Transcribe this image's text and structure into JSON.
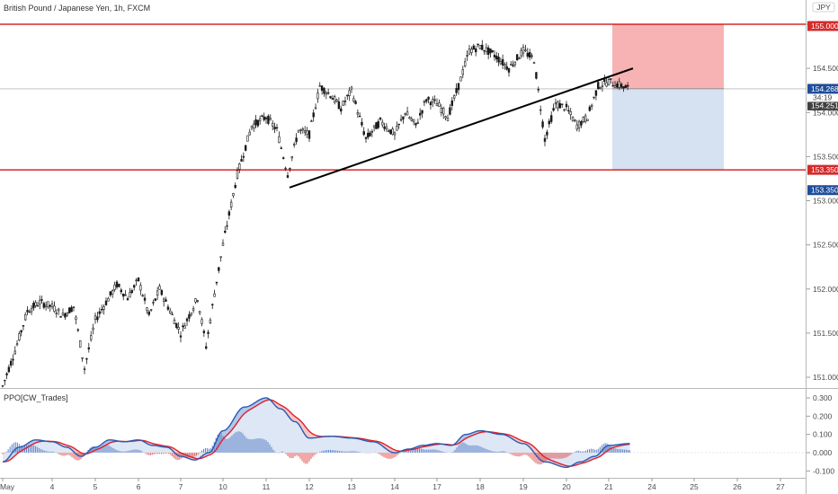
{
  "chart_data": {
    "type": "candlestick",
    "title": "British Pound / Japanese Yen, 1h, FXCM",
    "currency": "JPY",
    "price_axis": {
      "range": [
        150.88,
        155.1
      ],
      "ticks": [
        151.0,
        151.5,
        152.0,
        152.5,
        153.0,
        153.5,
        154.0,
        154.5,
        155.0
      ],
      "tick_labels": [
        "151.000",
        "151.500",
        "152.000",
        "152.500",
        "153.000",
        "153.500",
        "154.000",
        "154.500",
        "155.000"
      ]
    },
    "date_axis": {
      "labels": [
        "May",
        "4",
        "5",
        "6",
        "7",
        "10",
        "11",
        "12",
        "13",
        "14",
        "17",
        "18",
        "19",
        "20",
        "21",
        "24",
        "25",
        "26",
        "27"
      ]
    },
    "price_path": [
      [
        "May",
        150.9
      ],
      [
        "May",
        151.3
      ],
      [
        "May",
        151.75
      ],
      [
        "May",
        151.85
      ],
      [
        "4",
        151.8
      ],
      [
        "4",
        151.7
      ],
      [
        "4",
        151.8
      ],
      [
        "4",
        151.1
      ],
      [
        "5",
        151.65
      ],
      [
        "5",
        151.85
      ],
      [
        "5",
        152.05
      ],
      [
        "5",
        151.9
      ],
      [
        "6",
        152.1
      ],
      [
        "6",
        151.7
      ],
      [
        "6",
        152.0
      ],
      [
        "6",
        151.75
      ],
      [
        "7",
        151.5
      ],
      [
        "7",
        151.7
      ],
      [
        "7",
        151.9
      ],
      [
        "7",
        151.35
      ],
      [
        "7",
        151.95
      ],
      [
        "10",
        152.5
      ],
      [
        "10",
        153.3
      ],
      [
        "10",
        153.85
      ],
      [
        "11",
        153.95
      ],
      [
        "11",
        153.8
      ],
      [
        "11",
        153.3
      ],
      [
        "11",
        153.8
      ],
      [
        "12",
        153.75
      ],
      [
        "12",
        154.3
      ],
      [
        "12",
        154.2
      ],
      [
        "12",
        154.05
      ],
      [
        "13",
        154.25
      ],
      [
        "13",
        153.7
      ],
      [
        "13",
        153.9
      ],
      [
        "14",
        153.75
      ],
      [
        "14",
        154.0
      ],
      [
        "14",
        153.85
      ],
      [
        "14",
        154.15
      ],
      [
        "17",
        154.1
      ],
      [
        "17",
        153.95
      ],
      [
        "17",
        154.3
      ],
      [
        "17",
        154.7
      ],
      [
        "18",
        154.75
      ],
      [
        "18",
        154.65
      ],
      [
        "18",
        154.5
      ],
      [
        "19",
        154.7
      ],
      [
        "19",
        154.6
      ],
      [
        "19",
        153.7
      ],
      [
        "19",
        154.1
      ],
      [
        "20",
        154.05
      ],
      [
        "20",
        153.85
      ],
      [
        "20",
        153.95
      ],
      [
        "20",
        154.3
      ],
      [
        "21",
        154.35
      ],
      [
        "21",
        154.27
      ]
    ],
    "last_price": 154.268,
    "last_price_label": "154.268",
    "bar_countdown": "34:19",
    "second_price_label": "154.251",
    "horizontal_levels": [
      {
        "price": 155.0,
        "label": "155.000",
        "color": "#cc0000"
      },
      {
        "price": 153.35,
        "label": "153.350",
        "color": "#cc0000"
      }
    ],
    "price_tags": [
      {
        "price": 154.98,
        "label": "155.000",
        "color": "#d42b2b"
      },
      {
        "price": 154.268,
        "label": "154.268",
        "color": "#1f4e9a"
      },
      {
        "price": 154.08,
        "label": "154.251",
        "color": "#404040"
      },
      {
        "price": 153.35,
        "label": "153.350",
        "color": "#d42b2b"
      },
      {
        "price": 153.12,
        "label": "153.350",
        "color": "#1f4e9a"
      }
    ],
    "trendline": {
      "from": [
        "11",
        153.15
      ],
      "to": [
        "21",
        154.5
      ],
      "color": "#000000"
    },
    "short_position": {
      "start_date": "21",
      "end_date": "25",
      "entry": 154.27,
      "stop": 155.0,
      "target": 153.35,
      "stop_color": "#f7b3b3",
      "target_color": "#d6e1f2"
    },
    "indicator": {
      "name": "PPO[CW_Trades]",
      "range": [
        -0.12,
        0.33
      ],
      "ticks": [
        0.3,
        0.2,
        0.1,
        0.0,
        -0.1
      ],
      "tick_labels": [
        "0.300",
        "0.200",
        "0.100",
        "0.000",
        "-0.100"
      ],
      "ppo_path": [
        [
          "May",
          -0.05
        ],
        [
          "May",
          0.03
        ],
        [
          "May",
          0.07
        ],
        [
          "4",
          0.06
        ],
        [
          "4",
          0.03
        ],
        [
          "4",
          -0.02
        ],
        [
          "5",
          0.03
        ],
        [
          "5",
          0.07
        ],
        [
          "5",
          0.06
        ],
        [
          "6",
          0.07
        ],
        [
          "6",
          0.04
        ],
        [
          "6",
          0.03
        ],
        [
          "7",
          -0.02
        ],
        [
          "7",
          -0.04
        ],
        [
          "7",
          0.0
        ],
        [
          "10",
          0.12
        ],
        [
          "10",
          0.25
        ],
        [
          "11",
          0.3
        ],
        [
          "11",
          0.24
        ],
        [
          "11",
          0.17
        ],
        [
          "12",
          0.08
        ],
        [
          "12",
          0.09
        ],
        [
          "13",
          0.08
        ],
        [
          "13",
          0.06
        ],
        [
          "14",
          0.0
        ],
        [
          "14",
          0.02
        ],
        [
          "14",
          0.04
        ],
        [
          "17",
          0.05
        ],
        [
          "17",
          0.04
        ],
        [
          "17",
          0.1
        ],
        [
          "18",
          0.12
        ],
        [
          "18",
          0.1
        ],
        [
          "19",
          0.05
        ],
        [
          "19",
          -0.05
        ],
        [
          "20",
          -0.08
        ],
        [
          "20",
          -0.05
        ],
        [
          "20",
          -0.02
        ],
        [
          "21",
          0.04
        ],
        [
          "21",
          0.05
        ]
      ],
      "ppo_color": "#2a5ab0",
      "signal_color": "#e0202a",
      "hist_pos_color": "#5b7fc7",
      "hist_neg_color": "#e05050"
    },
    "grid": false
  }
}
